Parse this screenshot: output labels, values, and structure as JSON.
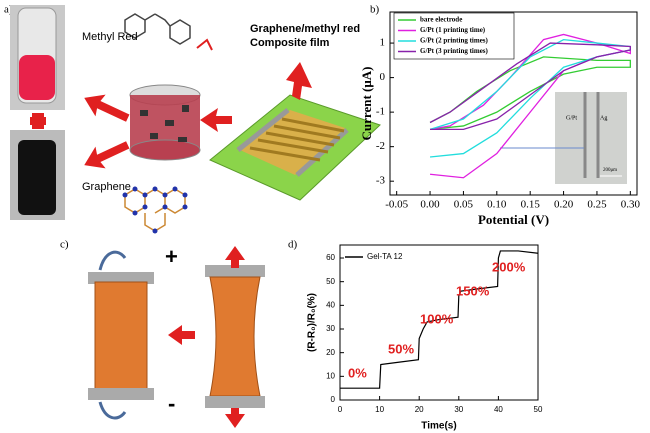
{
  "panels": {
    "labels": [
      "a)",
      "b)",
      "c)",
      "d)"
    ],
    "a": {
      "methyl_red": "Methyl Red",
      "composite": "Graphene/methyl red Composite film",
      "graphene": "Graphene"
    },
    "b_inset": {
      "left": "G/Pt",
      "right": "Ag",
      "scale": "200μm"
    },
    "c": {
      "plus": "+",
      "minus": "-"
    }
  },
  "chart_data": [
    {
      "type": "line",
      "xlabel": "Potential (V)",
      "ylabel": "Current (μA)",
      "xlim": [
        -0.06,
        0.31
      ],
      "ylim": [
        -3.4,
        1.9
      ],
      "xticks": [
        {
          "value": -0.05,
          "label": "-0.05"
        },
        {
          "value": 0,
          "label": "0.00"
        },
        {
          "value": 0.05,
          "label": "0.05"
        },
        {
          "value": 0.1,
          "label": "0.10"
        },
        {
          "value": 0.15,
          "label": "0.15"
        },
        {
          "value": 0.2,
          "label": "0.20"
        },
        {
          "value": 0.25,
          "label": "0.25"
        },
        {
          "value": 0.3,
          "label": "0.30"
        }
      ],
      "yticks": [
        -3,
        -2,
        -1,
        0,
        1
      ],
      "legend": "upper left",
      "series": [
        {
          "name": "bare electrode",
          "color": "#33cc33",
          "x": [
            0,
            0.05,
            0.1,
            0.15,
            0.2,
            0.25,
            0.3,
            0.3,
            0.25,
            0.17,
            0.12,
            0.07,
            0.03,
            0
          ],
          "values": [
            -1.5,
            -1.4,
            -1.0,
            -0.4,
            0.1,
            0.3,
            0.3,
            0.5,
            0.5,
            0.6,
            0.2,
            -0.4,
            -1.0,
            -1.3
          ]
        },
        {
          "name": "G/Pt (1 printing time)",
          "color": "#e020e0",
          "x": [
            0,
            0.05,
            0.1,
            0.15,
            0.2,
            0.25,
            0.3,
            0.3,
            0.25,
            0.2,
            0.17,
            0.12,
            0.08,
            0.03,
            0
          ],
          "values": [
            -2.8,
            -2.9,
            -2.2,
            -1.0,
            0.2,
            0.6,
            0.8,
            0.7,
            1.0,
            1.25,
            1.1,
            0.0,
            -0.8,
            -1.4,
            -1.5
          ]
        },
        {
          "name": "G/Pt (2 printing times)",
          "color": "#22dddd",
          "x": [
            0,
            0.05,
            0.1,
            0.15,
            0.2,
            0.25,
            0.3,
            0.3,
            0.25,
            0.2,
            0.15,
            0.1,
            0.05,
            0
          ],
          "values": [
            -2.3,
            -2.2,
            -1.6,
            -0.6,
            0.3,
            0.6,
            0.8,
            0.9,
            1.0,
            1.1,
            0.6,
            -0.4,
            -1.2,
            -1.5
          ]
        },
        {
          "name": "G/Pt (3 printing times)",
          "color": "#8822aa",
          "x": [
            0,
            0.05,
            0.1,
            0.15,
            0.2,
            0.25,
            0.3,
            0.3,
            0.25,
            0.18,
            0.13,
            0.08,
            0.03,
            0
          ],
          "values": [
            -1.5,
            -1.5,
            -1.2,
            -0.5,
            0.2,
            0.6,
            0.8,
            0.9,
            0.95,
            1.0,
            0.4,
            -0.3,
            -1.0,
            -1.3
          ]
        }
      ]
    },
    {
      "type": "line",
      "xlabel": "Time(s)",
      "ylabel": "(R-R₀)/R₀(%)",
      "xlim": [
        0,
        50
      ],
      "ylim": [
        0,
        65.5
      ],
      "xticks": [
        0,
        10,
        20,
        30,
        40,
        50
      ],
      "yticks": [
        0,
        10,
        20,
        30,
        40,
        50,
        60
      ],
      "legend": "upper left",
      "series": [
        {
          "name": "Gel-TA 12",
          "color": "#000000",
          "x": [
            0,
            10,
            10.3,
            15,
            19.8,
            20,
            21,
            22,
            25,
            29.8,
            30,
            30.5,
            35,
            39.8,
            40,
            40.5,
            45,
            50
          ],
          "values": [
            5,
            5,
            15,
            16,
            17,
            26,
            30,
            33,
            34,
            35,
            44,
            46,
            47,
            48,
            60,
            63,
            63,
            62
          ]
        }
      ],
      "annotation_color": "#e02020",
      "annotations": [
        "0%",
        "50%",
        "100%",
        "150%",
        "200%"
      ]
    }
  ]
}
